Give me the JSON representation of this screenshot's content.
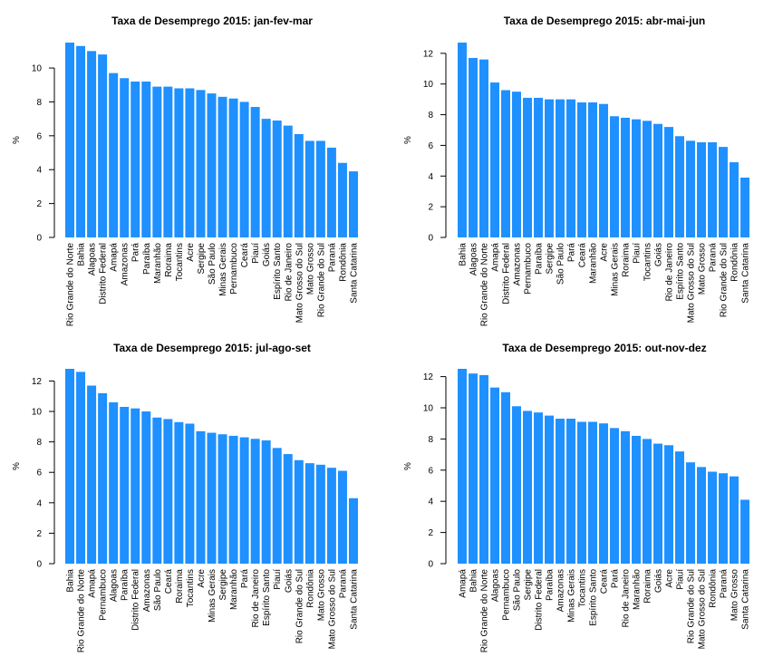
{
  "chart_data": [
    {
      "type": "bar",
      "title": "Taxa de Desemprego 2015: jan-fev-mar",
      "xlabel": "",
      "ylabel": "%",
      "ylim": [
        0,
        11.5
      ],
      "yticks": [
        0,
        2,
        4,
        6,
        8,
        10
      ],
      "bar_color": "#1E90FF",
      "categories": [
        "Rio Grande do Norte",
        "Bahia",
        "Alagoas",
        "Distrito Federal",
        "Amapá",
        "Amazonas",
        "Pará",
        "Paraíba",
        "Maranhão",
        "Roraima",
        "Tocantins",
        "Acre",
        "Sergipe",
        "São Paulo",
        "Minas Gerais",
        "Pernambuco",
        "Ceará",
        "Piauí",
        "Goiás",
        "Espírito Santo",
        "Rio de Janeiro",
        "Mato Grosso do Sul",
        "Mato Grosso",
        "Rio Grande do Sul",
        "Paraná",
        "Rondônia",
        "Santa Catarina"
      ],
      "values": [
        11.5,
        11.3,
        11.0,
        10.8,
        9.7,
        9.4,
        9.2,
        9.2,
        8.9,
        8.9,
        8.8,
        8.8,
        8.7,
        8.5,
        8.3,
        8.2,
        8.0,
        7.7,
        7.0,
        6.9,
        6.6,
        6.1,
        5.7,
        5.7,
        5.3,
        4.4,
        3.9
      ]
    },
    {
      "type": "bar",
      "title": "Taxa de Desemprego 2015: abr-mai-jun",
      "xlabel": "",
      "ylabel": "%",
      "ylim": [
        0,
        12.7
      ],
      "yticks": [
        0,
        2,
        4,
        6,
        8,
        10,
        12
      ],
      "bar_color": "#1E90FF",
      "categories": [
        "Bahia",
        "Alagoas",
        "Rio Grande do Norte",
        "Amapá",
        "Distrito Federal",
        "Amazonas",
        "Pernambuco",
        "Paraíba",
        "Sergipe",
        "São Paulo",
        "Pará",
        "Ceará",
        "Maranhão",
        "Acre",
        "Minas Gerais",
        "Roraima",
        "Piauí",
        "Tocantins",
        "Goiás",
        "Rio de Janeiro",
        "Espírito Santo",
        "Mato Grosso do Sul",
        "Mato Grosso",
        "Paraná",
        "Rio Grande do Sul",
        "Rondônia",
        "Santa Catarina"
      ],
      "values": [
        12.7,
        11.7,
        11.6,
        10.1,
        9.6,
        9.5,
        9.1,
        9.1,
        9.0,
        9.0,
        9.0,
        8.8,
        8.8,
        8.7,
        7.9,
        7.8,
        7.7,
        7.6,
        7.4,
        7.2,
        6.6,
        6.3,
        6.2,
        6.2,
        5.9,
        4.9,
        3.9
      ]
    },
    {
      "type": "bar",
      "title": "Taxa de Desemprego 2015: jul-ago-set",
      "xlabel": "",
      "ylabel": "%",
      "ylim": [
        0,
        12.8
      ],
      "yticks": [
        0,
        2,
        4,
        6,
        8,
        10,
        12
      ],
      "bar_color": "#1E90FF",
      "categories": [
        "Bahia",
        "Rio Grande do Norte",
        "Amapá",
        "Pernambuco",
        "Alagoas",
        "Paraíba",
        "Distrito Federal",
        "Amazonas",
        "São Paulo",
        "Ceará",
        "Roraima",
        "Tocantins",
        "Acre",
        "Minas Gerais",
        "Sergipe",
        "Maranhão",
        "Pará",
        "Rio de Janeiro",
        "Espírito Santo",
        "Piauí",
        "Goiás",
        "Rio Grande do Sul",
        "Rondônia",
        "Mato Grosso",
        "Mato Grosso do Sul",
        "Paraná",
        "Santa Catarina"
      ],
      "values": [
        12.8,
        12.6,
        11.7,
        11.2,
        10.6,
        10.3,
        10.2,
        10.0,
        9.6,
        9.5,
        9.3,
        9.2,
        8.7,
        8.6,
        8.5,
        8.4,
        8.3,
        8.2,
        8.1,
        7.6,
        7.2,
        6.8,
        6.6,
        6.5,
        6.3,
        6.1,
        4.3
      ]
    },
    {
      "type": "bar",
      "title": "Taxa de Desemprego 2015: out-nov-dez",
      "xlabel": "",
      "ylabel": "%",
      "ylim": [
        0,
        12.5
      ],
      "yticks": [
        0,
        2,
        4,
        6,
        8,
        10,
        12
      ],
      "bar_color": "#1E90FF",
      "categories": [
        "Amapá",
        "Bahia",
        "Rio Grande do Norte",
        "Alagoas",
        "Pernambuco",
        "São Paulo",
        "Sergipe",
        "Distrito Federal",
        "Paraíba",
        "Amazonas",
        "Minas Gerais",
        "Tocantins",
        "Espírito Santo",
        "Ceará",
        "Pará",
        "Rio de Janeiro",
        "Maranhão",
        "Roraima",
        "Goiás",
        "Acre",
        "Piauí",
        "Rio Grande do Sul",
        "Mato Grosso do Sul",
        "Rondônia",
        "Paraná",
        "Mato Grosso",
        "Santa Catarina"
      ],
      "values": [
        12.5,
        12.2,
        12.1,
        11.3,
        11.0,
        10.1,
        9.8,
        9.7,
        9.5,
        9.3,
        9.3,
        9.1,
        9.1,
        9.0,
        8.7,
        8.5,
        8.2,
        8.0,
        7.7,
        7.6,
        7.2,
        6.5,
        6.2,
        5.9,
        5.8,
        5.6,
        4.1
      ]
    }
  ]
}
